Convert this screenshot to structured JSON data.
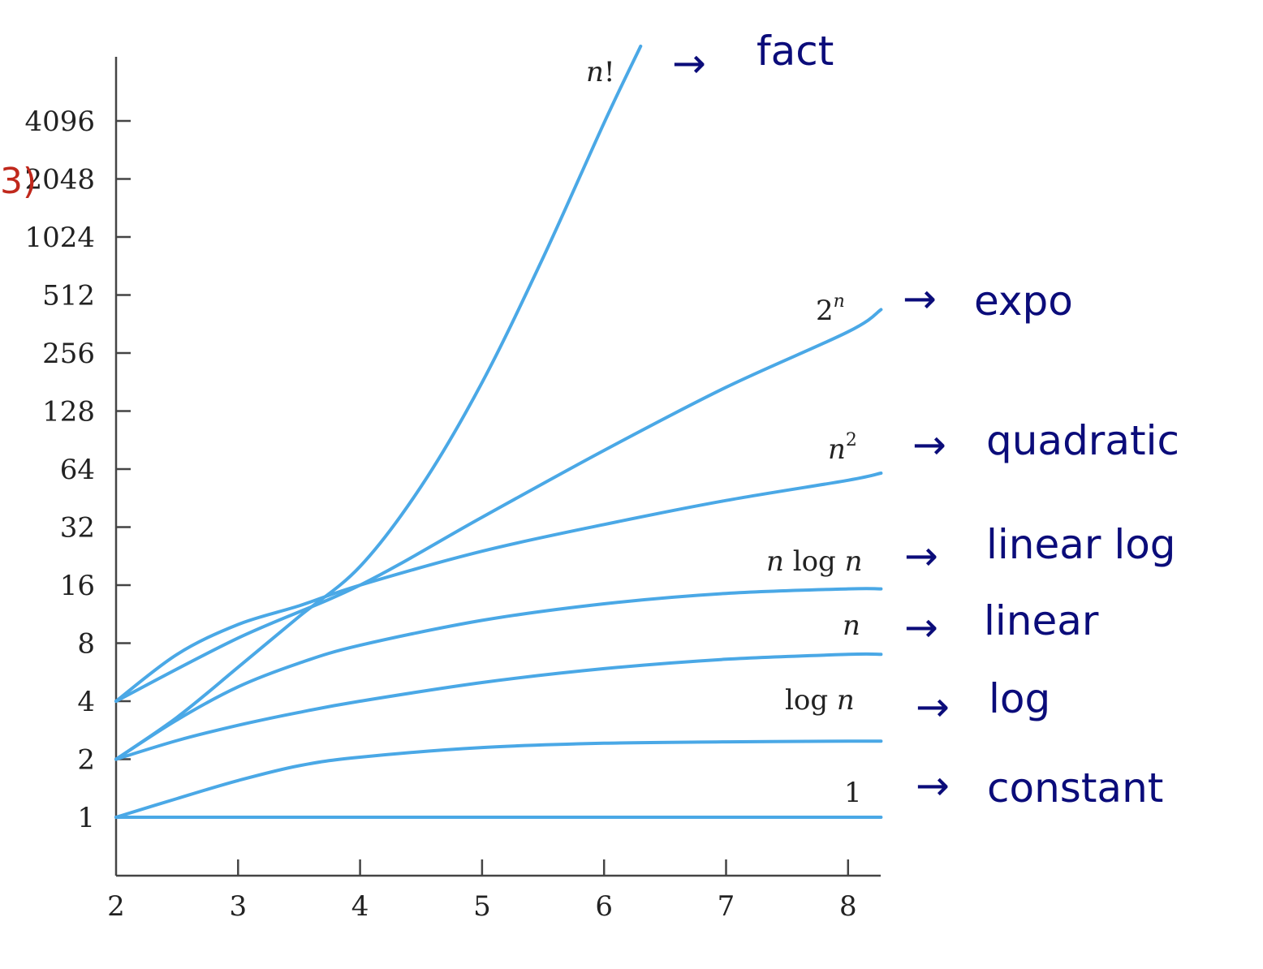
{
  "chart_data": {
    "type": "line",
    "title": "",
    "xlabel": "",
    "ylabel": "",
    "y_scale": "log2",
    "grid": false,
    "legend": "none",
    "xlim": [
      2,
      8.27
    ],
    "ylim": [
      0.5,
      12000
    ],
    "x_ticks": [
      2,
      3,
      4,
      5,
      6,
      7,
      8
    ],
    "y_ticks": [
      1,
      2,
      4,
      8,
      16,
      32,
      64,
      128,
      256,
      512,
      1024,
      2048,
      4096
    ],
    "x_tick_labels": [
      "2",
      "3",
      "4",
      "5",
      "6",
      "7",
      "8"
    ],
    "y_tick_labels": [
      "1",
      "2",
      "4",
      "8",
      "16",
      "32",
      "64",
      "128",
      "256",
      "512",
      "1024",
      "2048",
      "4096"
    ],
    "colors": {
      "curve": "#4aa8e6",
      "axis": "#444444",
      "handwriting": "#0b0c7a",
      "red_mark": "#c0281c"
    },
    "series": [
      {
        "id": "constant",
        "label": "1",
        "x": [
          2,
          3,
          4,
          5,
          6,
          7,
          8,
          8.27
        ],
        "values": [
          1,
          1,
          1,
          1,
          1,
          1,
          1,
          1
        ]
      },
      {
        "id": "log",
        "label": "log n",
        "x": [
          2,
          2.5,
          3,
          3.5,
          4,
          5,
          6,
          7,
          8,
          8.27
        ],
        "values": [
          1,
          1.25,
          1.55,
          1.85,
          2.05,
          2.3,
          2.42,
          2.46,
          2.48,
          2.48
        ]
      },
      {
        "id": "linear",
        "label": "n",
        "x": [
          2,
          2.5,
          3,
          3.5,
          4,
          5,
          6,
          7,
          8,
          8.27
        ],
        "values": [
          2,
          2.5,
          3,
          3.5,
          4,
          5,
          5.9,
          6.6,
          7,
          7
        ]
      },
      {
        "id": "nlogn",
        "label": "n log n",
        "x": [
          2,
          2.5,
          3,
          3.5,
          4,
          5,
          6,
          7,
          8,
          8.27
        ],
        "values": [
          2,
          3.2,
          4.75,
          6.3,
          7.8,
          10.5,
          12.8,
          14.5,
          15.3,
          15.3
        ]
      },
      {
        "id": "quadratic",
        "label": "n2",
        "x": [
          2,
          2.5,
          3,
          3.5,
          4,
          5,
          6,
          7,
          8,
          8.27
        ],
        "values": [
          4,
          7,
          10,
          12.5,
          16,
          24,
          33,
          44,
          56,
          61
        ]
      },
      {
        "id": "exponential",
        "label": "2n",
        "x": [
          2,
          3,
          4,
          5,
          6,
          7,
          8,
          8.27
        ],
        "values": [
          4,
          8.5,
          16,
          36,
          80,
          170,
          330,
          430
        ]
      },
      {
        "id": "factorial",
        "label": "n!",
        "x": [
          2,
          2.5,
          3,
          3.5,
          4,
          4.5,
          5,
          5.5,
          6,
          6.3
        ],
        "values": [
          2,
          3.3,
          6,
          11,
          20,
          52,
          180,
          800,
          4000,
          10000
        ]
      }
    ]
  },
  "labels": {
    "constant": {
      "base": "1"
    },
    "log": {
      "prefix": "log ",
      "var": "n"
    },
    "linear": {
      "var": "n"
    },
    "nlogn": {
      "var1": "n",
      "mid": " log ",
      "var2": "n"
    },
    "quadratic": {
      "var": "n",
      "exp": "2"
    },
    "exponential": {
      "base": "2",
      "exp": "n"
    },
    "factorial": {
      "var": "n",
      "suffix": "!"
    }
  },
  "annotations": {
    "factorial": "fact",
    "exponential": "expo",
    "quadratic": "quadratic",
    "nlogn": "linear log",
    "linear": "linear",
    "log": "log",
    "constant": "constant",
    "arrow": "→",
    "red_mark": "3)"
  }
}
